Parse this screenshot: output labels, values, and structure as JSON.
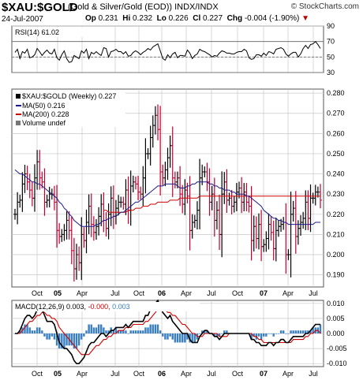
{
  "header": {
    "symbol": "$XAU:$GOLD",
    "name": "(Gold & Silver/Gold (EOD))",
    "exchange": "INDX/INDX",
    "brand": "© StockCharts.com",
    "date": "24-Jul-2007",
    "open_label": "Op",
    "open": "0.231",
    "high_label": "Hi",
    "high": "0.232",
    "low_label": "Lo",
    "low": "0.226",
    "close_label": "Cl",
    "close": "0.227",
    "change_label": "Chg",
    "change": "-0.004 (-1.90%)",
    "change_arrow": "▼"
  },
  "colors": {
    "up_bar": "#000000",
    "down_bar": "#c00030",
    "ma50": "#1a1a8c",
    "ma200": "#d00000",
    "macd_line": "#000000",
    "signal_line": "#d00000",
    "histogram": "#3a7fc0",
    "grid": "#c8c8c8"
  },
  "chart_data": [
    {
      "type": "line",
      "panel": "RSI",
      "legend": "RSI(14) 61.02",
      "ylim": [
        30,
        90
      ],
      "yticks": [
        30,
        50,
        70,
        90
      ],
      "reference_lines": [
        30,
        50,
        70
      ],
      "x_tick_labels": [
        "Oct",
        "05",
        "Apr",
        "Jul",
        "Oct",
        "06",
        "Apr",
        "Jul",
        "Oct",
        "07",
        "Apr",
        "Jul"
      ],
      "values": [
        56,
        60,
        48,
        57,
        55,
        60,
        49,
        50,
        53,
        61,
        57,
        52,
        56,
        59,
        55,
        54,
        60,
        49,
        46,
        53,
        58,
        48,
        43,
        44,
        52,
        50,
        48,
        58,
        55,
        60,
        48,
        56,
        54,
        57,
        54,
        52,
        62,
        61,
        50,
        57,
        58,
        60,
        57,
        57,
        54,
        57,
        51,
        52,
        56,
        58,
        56,
        53,
        56,
        58,
        61,
        59,
        63,
        65,
        67,
        58,
        48,
        46,
        53,
        49,
        54,
        56,
        49,
        52,
        52,
        51,
        59,
        55,
        48,
        52,
        54,
        60,
        58,
        57,
        55,
        53,
        50,
        52,
        51,
        55,
        58,
        57,
        55,
        55,
        54,
        54,
        56,
        57,
        57,
        60,
        58,
        49,
        47,
        48,
        53,
        53,
        51,
        55,
        52,
        57,
        56,
        54,
        60,
        61,
        62,
        60,
        54,
        51,
        54,
        56,
        56,
        50,
        54,
        61,
        65,
        61,
        66,
        67,
        70,
        66,
        61
      ]
    },
    {
      "type": "bar",
      "panel": "price",
      "subtype": "ohlc",
      "legend": [
        "$XAU:$GOLD (Weekly) 0.227",
        "MA(50) 0.216",
        "MA(200) 0.228",
        "Volume undef"
      ],
      "ylim": [
        0.184,
        0.282
      ],
      "yticks": [
        0.19,
        0.2,
        0.21,
        0.22,
        0.23,
        0.24,
        0.25,
        0.26,
        0.27,
        0.28
      ],
      "x_tick_labels": [
        "Oct",
        "05",
        "Apr",
        "Jul",
        "Oct",
        "06",
        "Apr",
        "Jul",
        "Oct",
        "07",
        "Apr",
        "Jul"
      ],
      "close": [
        0.22,
        0.226,
        0.227,
        0.235,
        0.24,
        0.236,
        0.232,
        0.228,
        0.238,
        0.246,
        0.238,
        0.236,
        0.226,
        0.227,
        0.23,
        0.23,
        0.226,
        0.212,
        0.209,
        0.21,
        0.212,
        0.217,
        0.212,
        0.202,
        0.193,
        0.2,
        0.196,
        0.21,
        0.207,
        0.216,
        0.224,
        0.215,
        0.211,
        0.214,
        0.219,
        0.225,
        0.217,
        0.213,
        0.22,
        0.228,
        0.219,
        0.223,
        0.226,
        0.226,
        0.225,
        0.232,
        0.222,
        0.234,
        0.236,
        0.235,
        0.231,
        0.23,
        0.238,
        0.25,
        0.25,
        0.258,
        0.264,
        0.269,
        0.262,
        0.241,
        0.238,
        0.242,
        0.248,
        0.254,
        0.238,
        0.236,
        0.238,
        0.23,
        0.225,
        0.232,
        0.229,
        0.212,
        0.216,
        0.217,
        0.222,
        0.238,
        0.241,
        0.241,
        0.236,
        0.226,
        0.23,
        0.217,
        0.222,
        0.21,
        0.23,
        0.236,
        0.227,
        0.228,
        0.224,
        0.226,
        0.231,
        0.233,
        0.226,
        0.231,
        0.226,
        0.224,
        0.207,
        0.214,
        0.208,
        0.215,
        0.204,
        0.205,
        0.208,
        0.215,
        0.211,
        0.203,
        0.212,
        0.214,
        0.215,
        0.216,
        0.2,
        0.2,
        0.22,
        0.223,
        0.209,
        0.213,
        0.216,
        0.218,
        0.226,
        0.218,
        0.228,
        0.228,
        0.231,
        0.231,
        0.227
      ],
      "ma50": [
        0.242,
        0.241,
        0.24,
        0.24,
        0.239,
        0.238,
        0.237,
        0.236,
        0.236,
        0.235,
        0.235,
        0.234,
        0.233,
        0.232,
        0.231,
        0.23,
        0.229,
        0.228,
        0.226,
        0.225,
        0.223,
        0.222,
        0.22,
        0.219,
        0.217,
        0.216,
        0.215,
        0.214,
        0.214,
        0.214,
        0.214,
        0.214,
        0.214,
        0.215,
        0.215,
        0.216,
        0.217,
        0.217,
        0.218,
        0.218,
        0.219,
        0.219,
        0.22,
        0.221,
        0.221,
        0.222,
        0.223,
        0.224,
        0.225,
        0.226,
        0.226,
        0.227,
        0.228,
        0.229,
        0.23,
        0.231,
        0.232,
        0.233,
        0.234,
        0.234,
        0.234,
        0.235,
        0.235,
        0.235,
        0.235,
        0.235,
        0.234,
        0.233,
        0.233,
        0.233,
        0.234,
        0.234,
        0.235,
        0.235,
        0.236,
        0.236,
        0.236,
        0.236,
        0.236,
        0.235,
        0.235,
        0.234,
        0.234,
        0.233,
        0.233,
        0.232,
        0.232,
        0.232,
        0.231,
        0.231,
        0.23,
        0.23,
        0.23,
        0.23,
        0.229,
        0.229,
        0.228,
        0.227,
        0.226,
        0.225,
        0.224,
        0.222,
        0.221,
        0.22,
        0.219,
        0.218,
        0.218,
        0.217,
        0.217,
        0.216,
        0.216,
        0.215,
        0.215,
        0.215,
        0.215,
        0.215,
        0.215,
        0.215,
        0.215,
        0.215,
        0.215,
        0.215,
        0.216,
        0.216,
        0.216
      ],
      "ma200": [
        null,
        null,
        null,
        null,
        null,
        null,
        null,
        null,
        null,
        null,
        null,
        null,
        null,
        null,
        null,
        null,
        null,
        null,
        null,
        null,
        null,
        null,
        null,
        null,
        null,
        null,
        null,
        null,
        null,
        null,
        null,
        null,
        null,
        null,
        null,
        null,
        0.222,
        0.222,
        0.221,
        0.221,
        0.221,
        0.221,
        0.221,
        0.221,
        0.221,
        0.221,
        0.222,
        0.222,
        0.222,
        0.223,
        0.223,
        0.223,
        0.224,
        0.224,
        0.224,
        0.225,
        0.225,
        0.225,
        0.226,
        0.226,
        0.226,
        0.226,
        0.226,
        0.227,
        0.227,
        0.227,
        0.227,
        0.228,
        0.228,
        0.228,
        0.228,
        0.228,
        0.228,
        0.228,
        0.228,
        0.229,
        0.229,
        0.229,
        0.229,
        0.229,
        0.229,
        0.229,
        0.229,
        0.229,
        0.229,
        0.229,
        0.229,
        0.229,
        0.229,
        0.229,
        0.229,
        0.229,
        0.229,
        0.229,
        0.229,
        0.229,
        0.229,
        0.229,
        0.229,
        0.229,
        0.229,
        0.229,
        0.229,
        0.229,
        0.229,
        0.229,
        0.229,
        0.229,
        0.229,
        0.229,
        0.229,
        0.229,
        0.229,
        0.229,
        0.229,
        0.229,
        0.229,
        0.229,
        0.229,
        0.229,
        0.229,
        0.229,
        0.229,
        0.229,
        0.229
      ]
    },
    {
      "type": "line",
      "panel": "MACD",
      "legend_prefix": "MACD(12,26,9)",
      "legend_macd": "0.003,",
      "legend_signal": "-0.000,",
      "legend_hist": "0.003",
      "ylim": [
        -0.011,
        0.011
      ],
      "yticks": [
        -0.01,
        -0.005,
        0.0,
        0.005,
        0.01
      ],
      "x_tick_labels": [
        "Oct",
        "05",
        "Apr",
        "Jul",
        "Oct",
        "06",
        "Apr",
        "Jul",
        "Oct",
        "07",
        "Apr",
        "Jul"
      ],
      "macd": [
        0.0,
        0.0,
        0.001,
        0.003,
        0.005,
        0.006,
        0.006,
        0.005,
        0.006,
        0.008,
        0.008,
        0.008,
        0.006,
        0.004,
        0.004,
        0.004,
        0.003,
        0.0,
        -0.003,
        -0.004,
        -0.005,
        -0.005,
        -0.006,
        -0.007,
        -0.009,
        -0.01,
        -0.01,
        -0.009,
        -0.008,
        -0.006,
        -0.004,
        -0.003,
        -0.003,
        -0.002,
        -0.001,
        0.0,
        0.0,
        -0.001,
        0.0,
        0.001,
        0.001,
        0.002,
        0.002,
        0.002,
        0.002,
        0.003,
        0.002,
        0.003,
        0.004,
        0.004,
        0.004,
        0.004,
        0.004,
        0.006,
        0.006,
        0.008,
        0.009,
        0.01,
        0.011,
        0.009,
        0.007,
        0.006,
        0.005,
        0.006,
        0.004,
        0.003,
        0.002,
        0.001,
        0.0,
        0.0,
        0.0,
        -0.002,
        -0.003,
        -0.003,
        -0.003,
        -0.001,
        0.0,
        0.001,
        0.001,
        0.0,
        0.0,
        -0.001,
        -0.001,
        -0.002,
        -0.001,
        0.0,
        0.0,
        0.0,
        0.0,
        0.0,
        0.0,
        0.0,
        0.0,
        0.0,
        0.0,
        0.0,
        -0.002,
        -0.002,
        -0.003,
        -0.003,
        -0.004,
        -0.004,
        -0.004,
        -0.003,
        -0.003,
        -0.004,
        -0.003,
        -0.003,
        -0.002,
        -0.002,
        -0.003,
        -0.003,
        -0.002,
        -0.001,
        -0.001,
        -0.001,
        -0.001,
        -0.001,
        0.0,
        0.0,
        0.001,
        0.002,
        0.003,
        0.003,
        0.003
      ],
      "signal": [
        0.0,
        0.0,
        0.0,
        0.001,
        0.002,
        0.003,
        0.004,
        0.004,
        0.005,
        0.006,
        0.006,
        0.007,
        0.007,
        0.006,
        0.006,
        0.005,
        0.005,
        0.004,
        0.002,
        0.001,
        0.0,
        -0.001,
        -0.002,
        -0.003,
        -0.004,
        -0.005,
        -0.006,
        -0.007,
        -0.007,
        -0.007,
        -0.007,
        -0.006,
        -0.005,
        -0.004,
        -0.004,
        -0.003,
        -0.002,
        -0.002,
        -0.001,
        -0.001,
        0.0,
        0.0,
        0.001,
        0.001,
        0.001,
        0.002,
        0.002,
        0.002,
        0.003,
        0.003,
        0.003,
        0.003,
        0.003,
        0.004,
        0.004,
        0.005,
        0.006,
        0.007,
        0.008,
        0.008,
        0.008,
        0.008,
        0.007,
        0.007,
        0.006,
        0.006,
        0.005,
        0.004,
        0.003,
        0.003,
        0.002,
        0.001,
        0.0,
        0.0,
        -0.001,
        -0.001,
        -0.001,
        0.0,
        0.0,
        0.0,
        0.0,
        0.0,
        0.0,
        -0.001,
        -0.001,
        -0.001,
        -0.001,
        0.0,
        0.0,
        0.0,
        0.0,
        0.0,
        0.0,
        0.0,
        0.0,
        0.0,
        0.0,
        -0.001,
        -0.001,
        -0.002,
        -0.002,
        -0.003,
        -0.003,
        -0.003,
        -0.003,
        -0.003,
        -0.003,
        -0.003,
        -0.003,
        -0.003,
        -0.003,
        -0.003,
        -0.003,
        -0.002,
        -0.002,
        -0.002,
        -0.002,
        -0.002,
        -0.001,
        -0.001,
        0.0,
        0.0,
        0.001,
        0.001,
        0.0
      ]
    }
  ]
}
